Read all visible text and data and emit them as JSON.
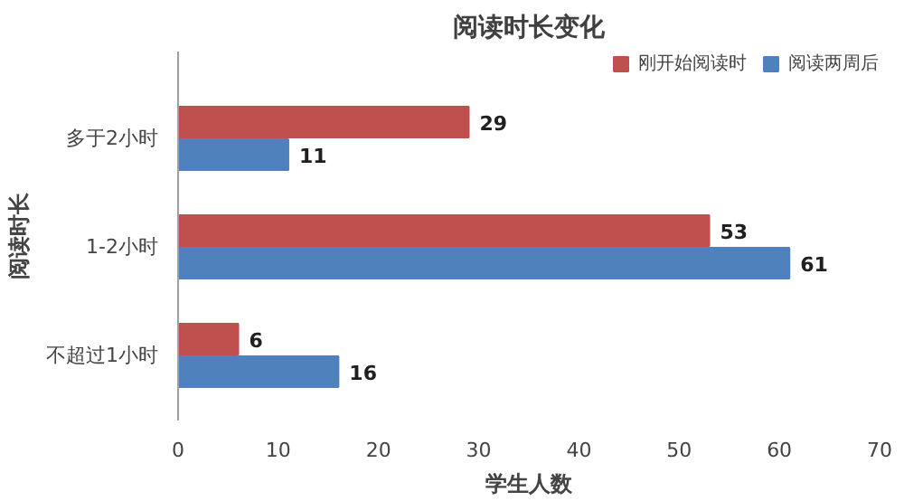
{
  "chart_data": {
    "type": "bar",
    "orientation": "horizontal",
    "title": "阅读时长变化",
    "xlabel": "学生人数",
    "ylabel": "阅读时长",
    "categories": [
      "多于2小时",
      "1-2小时",
      "不超过1小时"
    ],
    "series": [
      {
        "name": "刚开始阅读时",
        "color": "#c0504d",
        "values": [
          29,
          53,
          6
        ]
      },
      {
        "name": "阅读两周后",
        "color": "#4f81bd",
        "values": [
          11,
          61,
          16
        ]
      }
    ],
    "xlim": [
      0,
      70
    ],
    "xticks": [
      0,
      10,
      20,
      30,
      40,
      50,
      60,
      70
    ],
    "grid": false,
    "legend": "top right",
    "data_labels": true
  }
}
